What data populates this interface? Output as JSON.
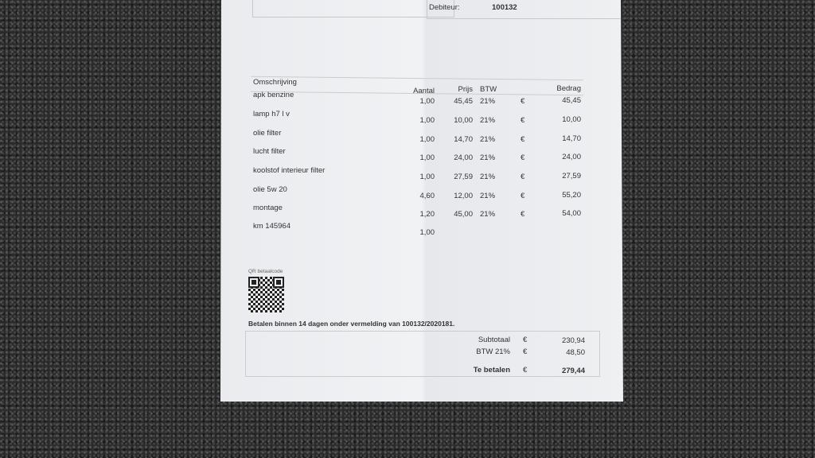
{
  "header": {
    "debiteur_label": "Debiteur:",
    "debiteur_value": "100132"
  },
  "table": {
    "columns": [
      "Omschrijving",
      "Aantal",
      "Prijs",
      "BTW",
      "Bedrag"
    ],
    "rows": [
      {
        "desc": "apk benzine",
        "qty": "1,00",
        "price": "45,45",
        "vat": "21%",
        "cur": "€",
        "amount": "45,45"
      },
      {
        "desc": "lamp h7 l v",
        "qty": "1,00",
        "price": "10,00",
        "vat": "21%",
        "cur": "€",
        "amount": "10,00"
      },
      {
        "desc": "olie filter",
        "qty": "1,00",
        "price": "14,70",
        "vat": "21%",
        "cur": "€",
        "amount": "14,70"
      },
      {
        "desc": "lucht filter",
        "qty": "1,00",
        "price": "24,00",
        "vat": "21%",
        "cur": "€",
        "amount": "24,00"
      },
      {
        "desc": "koolstof interieur filter",
        "qty": "1,00",
        "price": "27,59",
        "vat": "21%",
        "cur": "€",
        "amount": "27,59"
      },
      {
        "desc": "olie 5w 20",
        "qty": "4,60",
        "price": "12,00",
        "vat": "21%",
        "cur": "€",
        "amount": "55,20"
      },
      {
        "desc": "montage",
        "qty": "1,20",
        "price": "45,00",
        "vat": "21%",
        "cur": "€",
        "amount": "54,00"
      },
      {
        "desc": "km 145964",
        "qty": "1,00",
        "price": "",
        "vat": "",
        "cur": "",
        "amount": ""
      }
    ]
  },
  "qr": {
    "label": "QR betaalcode"
  },
  "payment_note": "Betalen binnen 14 dagen onder vermelding van 100132/2020181.",
  "totals": {
    "subtotal_label": "Subtotaal",
    "subtotal_cur": "€",
    "subtotal": "230,94",
    "vat_label": "BTW 21%",
    "vat_cur": "€",
    "vat": "48,50",
    "total_label": "Te betalen",
    "total_cur": "€",
    "total": "279,44"
  }
}
